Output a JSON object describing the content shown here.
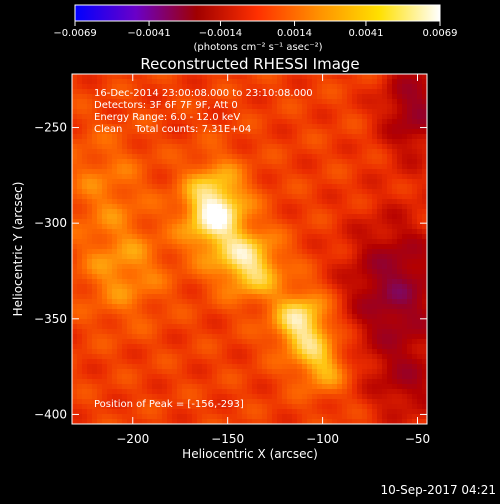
{
  "chart_data": {
    "type": "heatmap",
    "title": "Reconstructed RHESSI Image",
    "xlabel": "Heliocentric X (arcsec)",
    "ylabel": "Heliocentric Y (arcsec)",
    "xlim": [
      -232,
      -45
    ],
    "ylim": [
      -405,
      -222
    ],
    "xticks": [
      -200,
      -150,
      -100,
      -50
    ],
    "xtick_labels": [
      "−200",
      "−150",
      "−100",
      "−50"
    ],
    "yticks": [
      -250,
      -300,
      -350,
      -400
    ],
    "ytick_labels": [
      "−250",
      "−300",
      "−350",
      "−400"
    ],
    "colorbar": {
      "range": [
        -0.0069,
        0.0069
      ],
      "tick_values": [
        -0.0069,
        -0.0041,
        -0.0014,
        0.0014,
        0.0041,
        0.0069
      ],
      "tick_labels": [
        "−0.0069",
        "−0.0041",
        "−0.0014",
        "0.0014",
        "0.0041",
        "0.0069"
      ],
      "units": "(photons cm⁻² s⁻¹ asec⁻²)",
      "colors": [
        "#0000ff",
        "#6a00c8",
        "#a00000",
        "#ff3000",
        "#ff9000",
        "#ffe000",
        "#ffffff"
      ]
    },
    "annotations": {
      "time": "16-Dec-2014 23:00:08.000 to 23:10:08.000",
      "detectors": "Detectors: 3F 6F 7F 9F, Att 0",
      "energy": "Energy Range: 6.0 - 12.0 keV",
      "clean": "Clean    Total counts: 7.31E+04",
      "peak": "Position of Peak = [-156,-293]"
    },
    "sources": [
      {
        "x": -157,
        "y": -293,
        "intensity": 1.0,
        "sx": 12,
        "sy": 16
      },
      {
        "x": -138,
        "y": -322,
        "intensity": 0.78,
        "sx": 12,
        "sy": 12
      },
      {
        "x": -111,
        "y": -352,
        "intensity": 0.85,
        "sx": 11,
        "sy": 12
      },
      {
        "x": -100,
        "y": -375,
        "intensity": 0.55,
        "sx": 10,
        "sy": 10
      },
      {
        "x": -205,
        "y": -325,
        "intensity": 0.42,
        "sx": 16,
        "sy": 18
      },
      {
        "x": -215,
        "y": -280,
        "intensity": 0.3,
        "sx": 16,
        "sy": 20
      }
    ],
    "negative_regions": [
      {
        "x": -62,
        "y": -335,
        "depth": 0.75,
        "sx": 18,
        "sy": 26
      },
      {
        "x": -52,
        "y": -240,
        "depth": 0.65,
        "sx": 12,
        "sy": 18
      },
      {
        "x": -55,
        "y": -385,
        "depth": 0.4,
        "sx": 14,
        "sy": 14
      }
    ],
    "background_level": 0.3
  },
  "footer": {
    "date": "10-Sep-2017 04:21"
  }
}
